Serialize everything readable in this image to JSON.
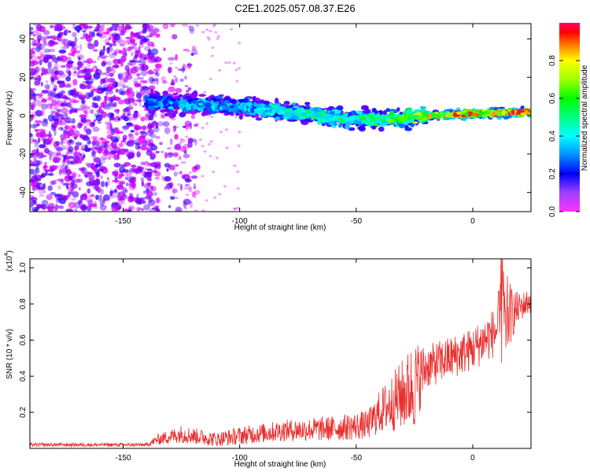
{
  "title": "C2E1.2025.057.08.37.E26",
  "chart_data": [
    {
      "type": "heatmap",
      "xlabel": "Height of straight line (km)",
      "ylabel": "Frequency (Hz)",
      "xlim": [
        -190,
        25
      ],
      "ylim": [
        -50,
        48
      ],
      "xticks": [
        -150,
        -100,
        -50,
        0
      ],
      "yticks": [
        -40,
        -20,
        0,
        20,
        40
      ],
      "colorbar": {
        "label": "Normalized spectral amplitude",
        "range": [
          0,
          1
        ],
        "ticks": [
          "0.0",
          "0.2",
          "0.4",
          "0.6",
          "0.8"
        ],
        "colormap": [
          "#ff00ff",
          "#8000ff",
          "#0000ff",
          "#00bfff",
          "#00ffff",
          "#00ff80",
          "#00ff00",
          "#80ff00",
          "#ffff00",
          "#ff8000",
          "#ff0000",
          "#ff0066"
        ]
      },
      "ridge": [
        {
          "x": -140,
          "freq": 7,
          "amp": 0.3
        },
        {
          "x": -120,
          "freq": 6,
          "amp": 0.3
        },
        {
          "x": -100,
          "freq": 5,
          "amp": 0.3
        },
        {
          "x": -80,
          "freq": 2,
          "amp": 0.4
        },
        {
          "x": -60,
          "freq": -1,
          "amp": 0.45
        },
        {
          "x": -40,
          "freq": -2,
          "amp": 0.5
        },
        {
          "x": -20,
          "freq": 0,
          "amp": 0.7
        },
        {
          "x": 0,
          "freq": 1,
          "amp": 0.85
        },
        {
          "x": 25,
          "freq": 2,
          "amp": 0.9
        }
      ],
      "noise_region": {
        "x": [
          -190,
          -130
        ],
        "freq": [
          -50,
          48
        ]
      }
    },
    {
      "type": "line",
      "xlabel": "Height of straight line (km)",
      "ylabel": "SNR (10 * v/v)",
      "y_multiplier": "(x10",
      "y_multiplier_exp": "4",
      "y_multiplier_close": ")",
      "xlim": [
        -190,
        25
      ],
      "ylim": [
        0,
        1.05
      ],
      "xticks": [
        -150,
        -100,
        -50,
        0
      ],
      "yticks": [
        0.2,
        0.4,
        0.6,
        0.8,
        1.0
      ],
      "ytick_labels": [
        "0.2",
        "0.4",
        "0.6",
        "0.8",
        "1.0"
      ],
      "color": "#e8302f",
      "envelope": {
        "x": [
          -190,
          -140,
          -135,
          -125,
          -110,
          -100,
          -80,
          -60,
          -45,
          -40,
          -30,
          -25,
          -20,
          -10,
          0,
          10,
          13,
          17,
          20,
          25
        ],
        "center": [
          0.02,
          0.02,
          0.05,
          0.08,
          0.05,
          0.07,
          0.1,
          0.11,
          0.13,
          0.2,
          0.3,
          0.35,
          0.45,
          0.5,
          0.55,
          0.65,
          0.72,
          0.75,
          0.78,
          0.82
        ],
        "spread": [
          0.01,
          0.01,
          0.03,
          0.05,
          0.04,
          0.05,
          0.06,
          0.07,
          0.08,
          0.12,
          0.2,
          0.25,
          0.12,
          0.12,
          0.12,
          0.14,
          0.3,
          0.14,
          0.08,
          0.07
        ]
      }
    }
  ]
}
